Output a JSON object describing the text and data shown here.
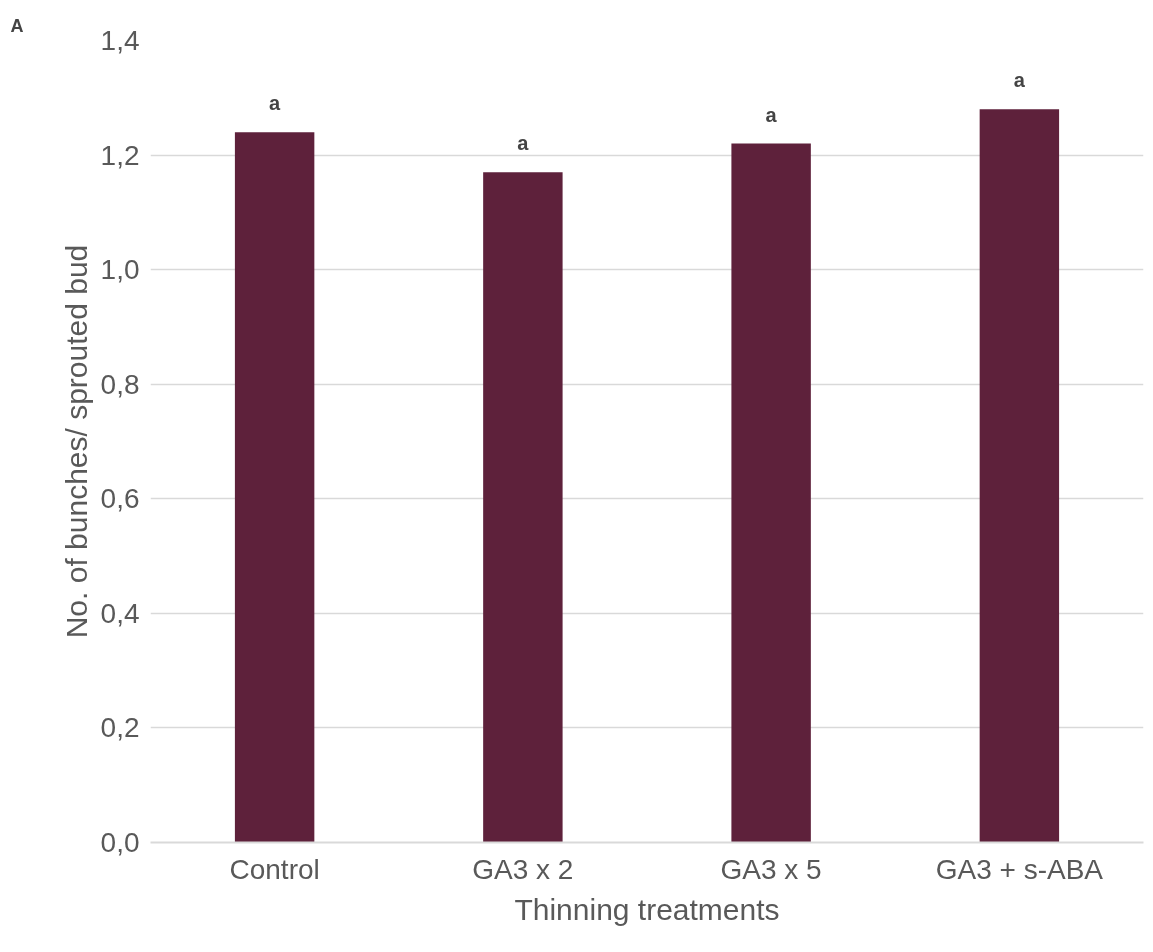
{
  "chart_data": {
    "type": "bar",
    "categories": [
      "Control",
      "GA3 x 2",
      "GA3 x 5",
      "GA3 + s-ABA"
    ],
    "values": [
      1.24,
      1.17,
      1.22,
      1.28
    ],
    "color": "#5e213b",
    "xlabel": "Thinning treatments",
    "ylabel": "No. of bunches/ sprouted bud",
    "ylim": [
      0,
      1.4
    ],
    "yticks": [
      {
        "value": 0,
        "label": "0,0"
      },
      {
        "value": 0.2,
        "label": "0,2"
      },
      {
        "value": 0.4,
        "label": "0,4"
      },
      {
        "value": 0.6,
        "label": "0,6"
      },
      {
        "value": 0.8,
        "label": "0,8"
      },
      {
        "value": 1.0,
        "label": "1,0"
      },
      {
        "value": 1.2,
        "label": "1,2"
      },
      {
        "value": 1.4,
        "label": "1,4"
      }
    ],
    "grid": "y",
    "annotations": [
      "A",
      {
        "text": "a",
        "x": "Control",
        "y": 1.24
      },
      {
        "text": "a",
        "x": "GA3 x 2",
        "y": 1.17
      },
      {
        "text": "a",
        "x": "GA3 x 5",
        "y": 1.22
      },
      {
        "text": "a",
        "x": "GA3 + s-ABA",
        "y": 1.28
      }
    ]
  }
}
